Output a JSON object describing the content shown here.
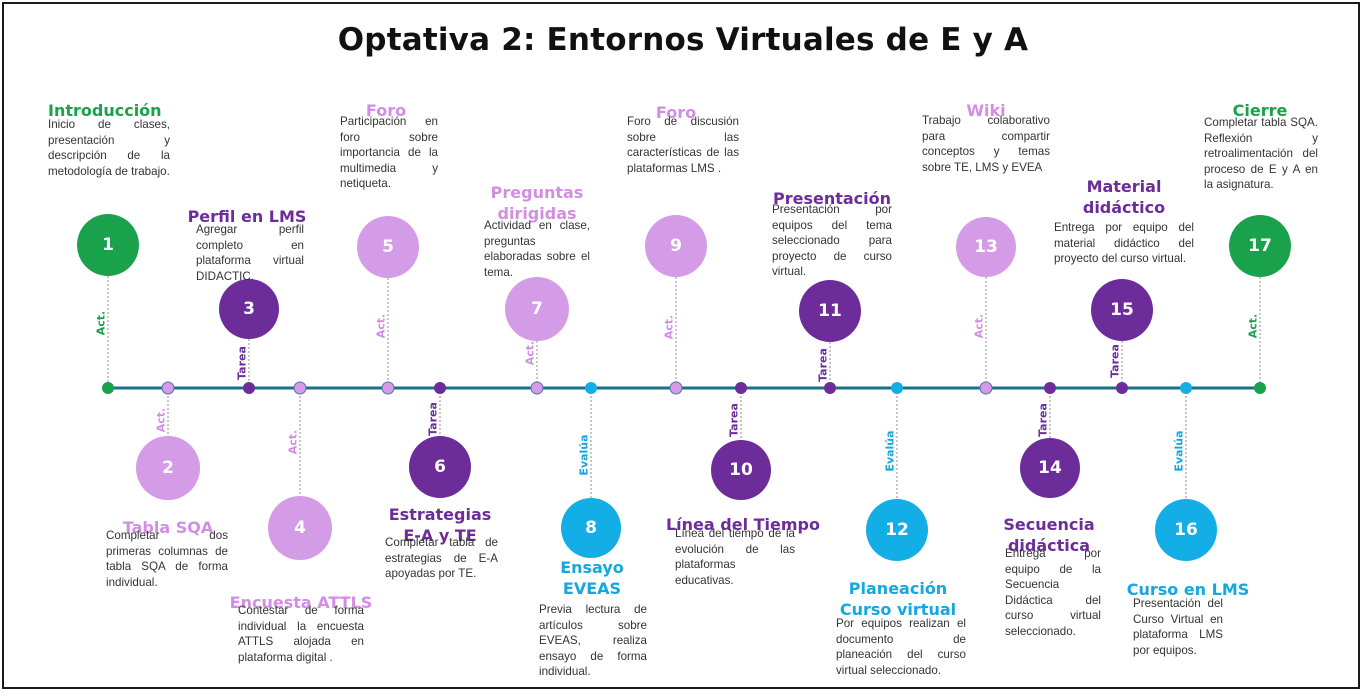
{
  "title": "Optativa 2: Entornos Virtuales de E y A",
  "colors": {
    "green": "#1aa14b",
    "lilac": "#d49be6",
    "purple": "#6c2d9a",
    "cyan": "#14aee6",
    "line": "#1a6f8c"
  },
  "steps": [
    {
      "number": "1",
      "label": "Act.",
      "title": "Introducción",
      "description": "Inicio de clases, presentación y descripción de la metodología de trabajo."
    },
    {
      "number": "2",
      "label": "Act.",
      "title": "Tabla SQA",
      "description": "Completar dos primeras columnas de tabla SQA de forma individual."
    },
    {
      "number": "3",
      "label": "Tarea",
      "title": "Perfil en LMS",
      "description": "Agregar perfil completo en plataforma virtual DIDACTIC."
    },
    {
      "number": "4",
      "label": "Act.",
      "title": "Encuesta ATTLS",
      "description": "Contestar de forma individual la encuesta ATTLS alojada en plataforma digital ."
    },
    {
      "number": "5",
      "label": "Act.",
      "title": "Foro",
      "description": "Participación en foro sobre importancia de la multimedia y netiqueta."
    },
    {
      "number": "6",
      "label": "Tarea",
      "title_lines": [
        "Estrategias",
        "E-A y TE"
      ],
      "description": "Completar tabla de estrategias de E-A apoyadas por TE."
    },
    {
      "number": "7",
      "label": "Act.",
      "title_lines": [
        "Preguntas",
        "dirigidas"
      ],
      "description": "Actividad en clase, preguntas elaboradas sobre el tema."
    },
    {
      "number": "8",
      "label": "Evalúa",
      "title_lines": [
        "Ensayo",
        "EVEAS"
      ],
      "description": "Previa lectura de artículos sobre EVEAS, realiza ensayo de forma individual."
    },
    {
      "number": "9",
      "label": "Act.",
      "title": "Foro",
      "description": "Foro de discusión sobre las características de las plataformas LMS ."
    },
    {
      "number": "10",
      "label": "Tarea",
      "title": "Línea del Tiempo",
      "description": "Línea del tiempo de la evolución de las plataformas educativas."
    },
    {
      "number": "11",
      "label": "Tarea",
      "title": "Presentación",
      "description": "Presentación por equipos del tema seleccionado para proyecto de curso virtual."
    },
    {
      "number": "12",
      "label": "Evalúa",
      "title_lines": [
        "Planeación",
        "Curso virtual"
      ],
      "description": "Por equipos realizan el documento de planeación del curso virtual seleccionado."
    },
    {
      "number": "13",
      "label": "Act.",
      "title": "Wiki",
      "description": "Trabajo colaborativo para compartir conceptos y temas sobre TE, LMS y EVEA"
    },
    {
      "number": "14",
      "label": "Tarea",
      "title_lines": [
        "Secuencia",
        "didáctica"
      ],
      "description": "Entrega por equipo de la Secuencia Didáctica del curso virtual seleccionado."
    },
    {
      "number": "15",
      "label": "Tarea",
      "title_lines": [
        "Material",
        "didáctico"
      ],
      "description": "Entrega por equipo del material didáctico del proyecto del curso virtual."
    },
    {
      "number": "16",
      "label": "Evalúa",
      "title": "Curso en LMS",
      "description": "Presentación del Curso Virtual en plataforma LMS por equipos."
    },
    {
      "number": "17",
      "label": "Act.",
      "title": "Cierre",
      "description": "Completar tabla SQA. Reflexión y retroalimentación del proceso de E y A en la asignatura."
    }
  ]
}
